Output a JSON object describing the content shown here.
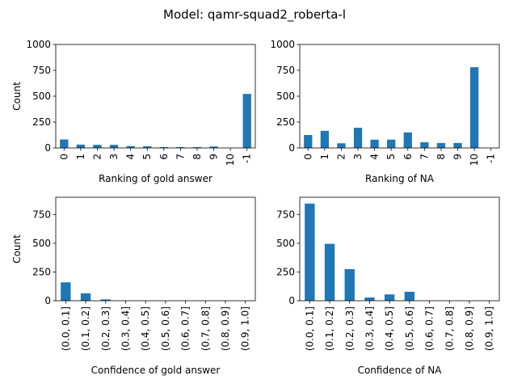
{
  "figure": {
    "suptitle": "Model: qamr-squad2_roberta-l"
  },
  "colors": {
    "bar": "#1f77b4",
    "axis": "#000000"
  },
  "chart_data": [
    {
      "type": "bar",
      "xlabel": "Ranking of gold answer",
      "ylabel": "Count",
      "ylim": [
        0,
        1000
      ],
      "yticks": [
        0,
        250,
        500,
        750,
        1000
      ],
      "categories": [
        "0",
        "1",
        "2",
        "3",
        "4",
        "5",
        "6",
        "7",
        "8",
        "9",
        "10",
        "-1"
      ],
      "values": [
        82,
        32,
        30,
        30,
        18,
        16,
        8,
        8,
        8,
        14,
        0,
        522
      ]
    },
    {
      "type": "bar",
      "xlabel": "Ranking of NA",
      "ylabel": "",
      "ylim": [
        0,
        1000
      ],
      "yticks": [
        0,
        250,
        500,
        750,
        1000
      ],
      "categories": [
        "0",
        "1",
        "2",
        "3",
        "4",
        "5",
        "6",
        "7",
        "8",
        "9",
        "10",
        "-1"
      ],
      "values": [
        125,
        165,
        45,
        195,
        80,
        80,
        150,
        55,
        48,
        48,
        780,
        0
      ]
    },
    {
      "type": "bar",
      "xlabel": "Confidence of gold answer",
      "ylabel": "Count",
      "ylim": [
        0,
        900
      ],
      "yticks": [
        0,
        250,
        500,
        750
      ],
      "categories": [
        "(0.0, 0.1]",
        "(0.1, 0.2]",
        "(0.2, 0.3]",
        "(0.3, 0.4]",
        "(0.4, 0.5]",
        "(0.5, 0.6]",
        "(0.6, 0.7]",
        "(0.7, 0.8]",
        "(0.8, 0.9]",
        "(0.9, 1.0]"
      ],
      "values": [
        160,
        65,
        12,
        0,
        0,
        0,
        0,
        0,
        0,
        0
      ]
    },
    {
      "type": "bar",
      "xlabel": "Confidence of NA",
      "ylabel": "",
      "ylim": [
        0,
        900
      ],
      "yticks": [
        0,
        250,
        500,
        750
      ],
      "categories": [
        "(0.0, 0.1]",
        "(0.1, 0.2]",
        "(0.2, 0.3]",
        "(0.3, 0.4]",
        "(0.4, 0.5]",
        "(0.5, 0.6]",
        "(0.6, 0.7]",
        "(0.7, 0.8]",
        "(0.8, 0.9]",
        "(0.9, 1.0]"
      ],
      "values": [
        845,
        495,
        275,
        28,
        55,
        78,
        0,
        0,
        0,
        0
      ]
    }
  ]
}
